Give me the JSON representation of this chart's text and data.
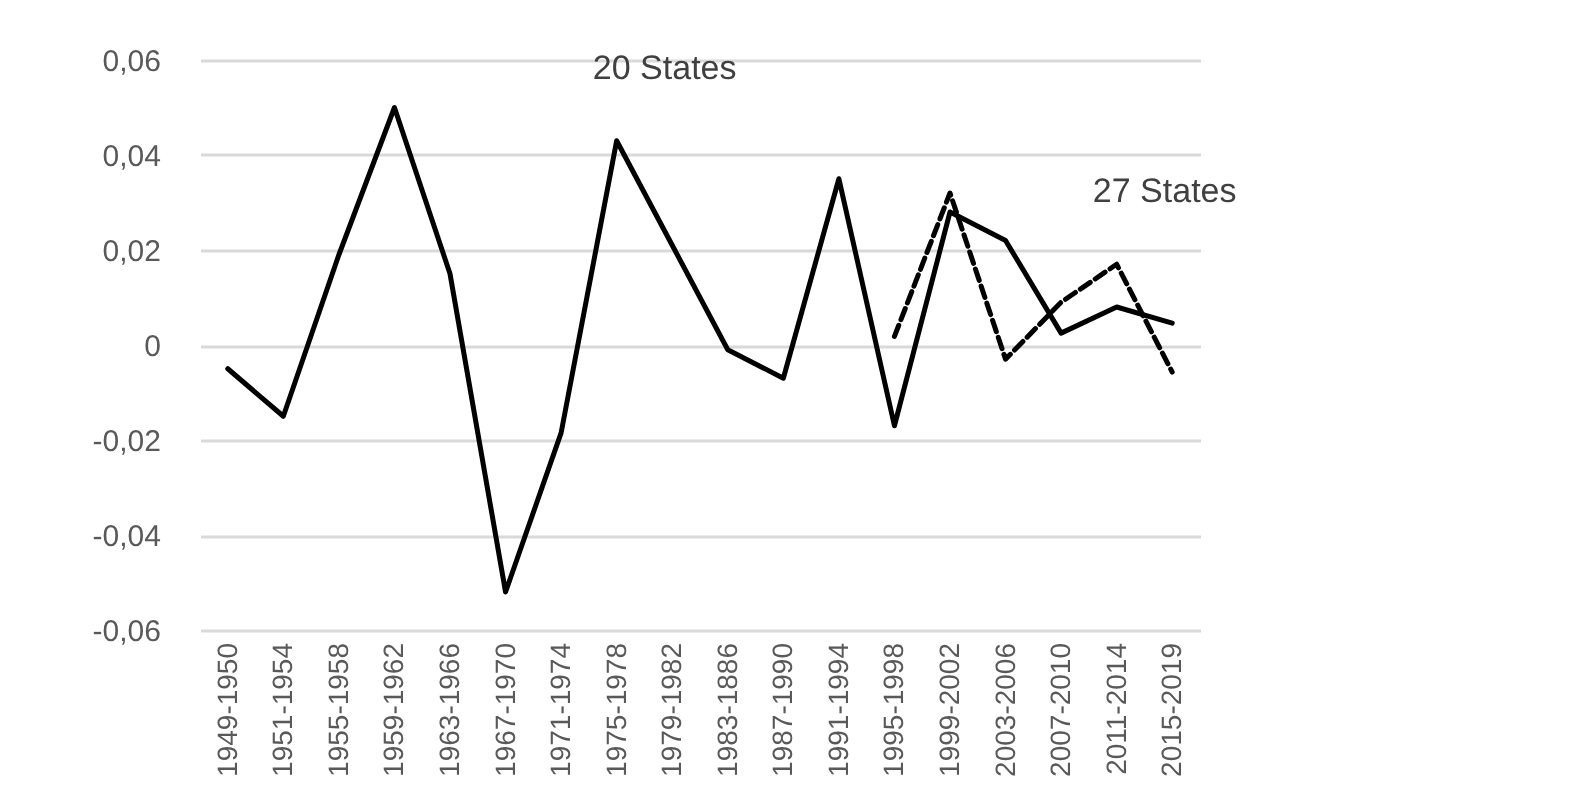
{
  "chart_data": {
    "type": "line",
    "categories": [
      "1949-1950",
      "1951-1954",
      "1955-1958",
      "1959-1962",
      "1963-1966",
      "1967-1970",
      "1971-1974",
      "1975-1978",
      "1979-1982",
      "1983-1886",
      "1987-1990",
      "1991-1994",
      "1995-1998",
      "1999-2002",
      "2003-2006",
      "2007-2010",
      "2011-2014",
      "2015-2019"
    ],
    "series": [
      {
        "color": "#000000",
        "line_style": "solid",
        "values": [
          -0.005,
          -0.015,
          0.019,
          0.05,
          0.015,
          -0.052,
          -0.0185,
          0.043,
          0.021,
          -0.001,
          -0.007,
          0.035,
          -0.017,
          0.028,
          0.022,
          0.0025,
          0.008,
          0.0046
        ]
      },
      {
        "color": "#000000",
        "line_style": "dashed",
        "values": [
          null,
          null,
          null,
          null,
          null,
          null,
          null,
          null,
          null,
          null,
          null,
          null,
          0.0018,
          0.032,
          -0.003,
          0.009,
          0.017,
          -0.0057
        ]
      }
    ],
    "ylim": [
      -0.06,
      0.06
    ],
    "yticks": [
      {
        "value": -0.06,
        "label": "-0,06"
      },
      {
        "value": -0.04,
        "label": "-0,04"
      },
      {
        "value": -0.02,
        "label": "-0,02"
      },
      0,
      {
        "value": 0.02,
        "label": "0,02"
      },
      {
        "value": 0.04,
        "label": "0,04"
      },
      {
        "value": 0.06,
        "label": "0,06"
      }
    ],
    "grid": "y",
    "annotations": [
      {
        "text": "20 States",
        "x": "1975-1978",
        "y": 0.043
      },
      {
        "text": "27 States",
        "x": "2011-2014",
        "y": 0.017
      }
    ]
  }
}
